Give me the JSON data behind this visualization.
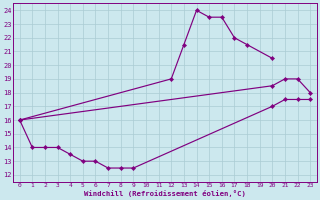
{
  "xlabel": "Windchill (Refroidissement éolien,°C)",
  "xlim": [
    -0.5,
    23.5
  ],
  "ylim": [
    11.5,
    24.5
  ],
  "xticks": [
    0,
    1,
    2,
    3,
    4,
    5,
    6,
    7,
    8,
    9,
    10,
    11,
    12,
    13,
    14,
    15,
    16,
    17,
    18,
    19,
    20,
    21,
    22,
    23
  ],
  "yticks": [
    12,
    13,
    14,
    15,
    16,
    17,
    18,
    19,
    20,
    21,
    22,
    23,
    24
  ],
  "bg_color": "#cce8ee",
  "line_color": "#800080",
  "grid_color": "#aaccd4",
  "line_spike_x": [
    0,
    12,
    13,
    14,
    15,
    16,
    17,
    18,
    20
  ],
  "line_spike_y": [
    16,
    19,
    21.5,
    24,
    23.5,
    23.5,
    22,
    21.5,
    20.5
  ],
  "line_upper_x": [
    0,
    20,
    21,
    22,
    23
  ],
  "line_upper_y": [
    16,
    18.5,
    19,
    19,
    18
  ],
  "line_lower_x": [
    0,
    1,
    2,
    3,
    4,
    5,
    6,
    7,
    8,
    9,
    20,
    21,
    22,
    23
  ],
  "line_lower_y": [
    16,
    14,
    14,
    14,
    13.5,
    13,
    13,
    12.5,
    12.5,
    12.5,
    17,
    17.5,
    17.5,
    17.5
  ]
}
